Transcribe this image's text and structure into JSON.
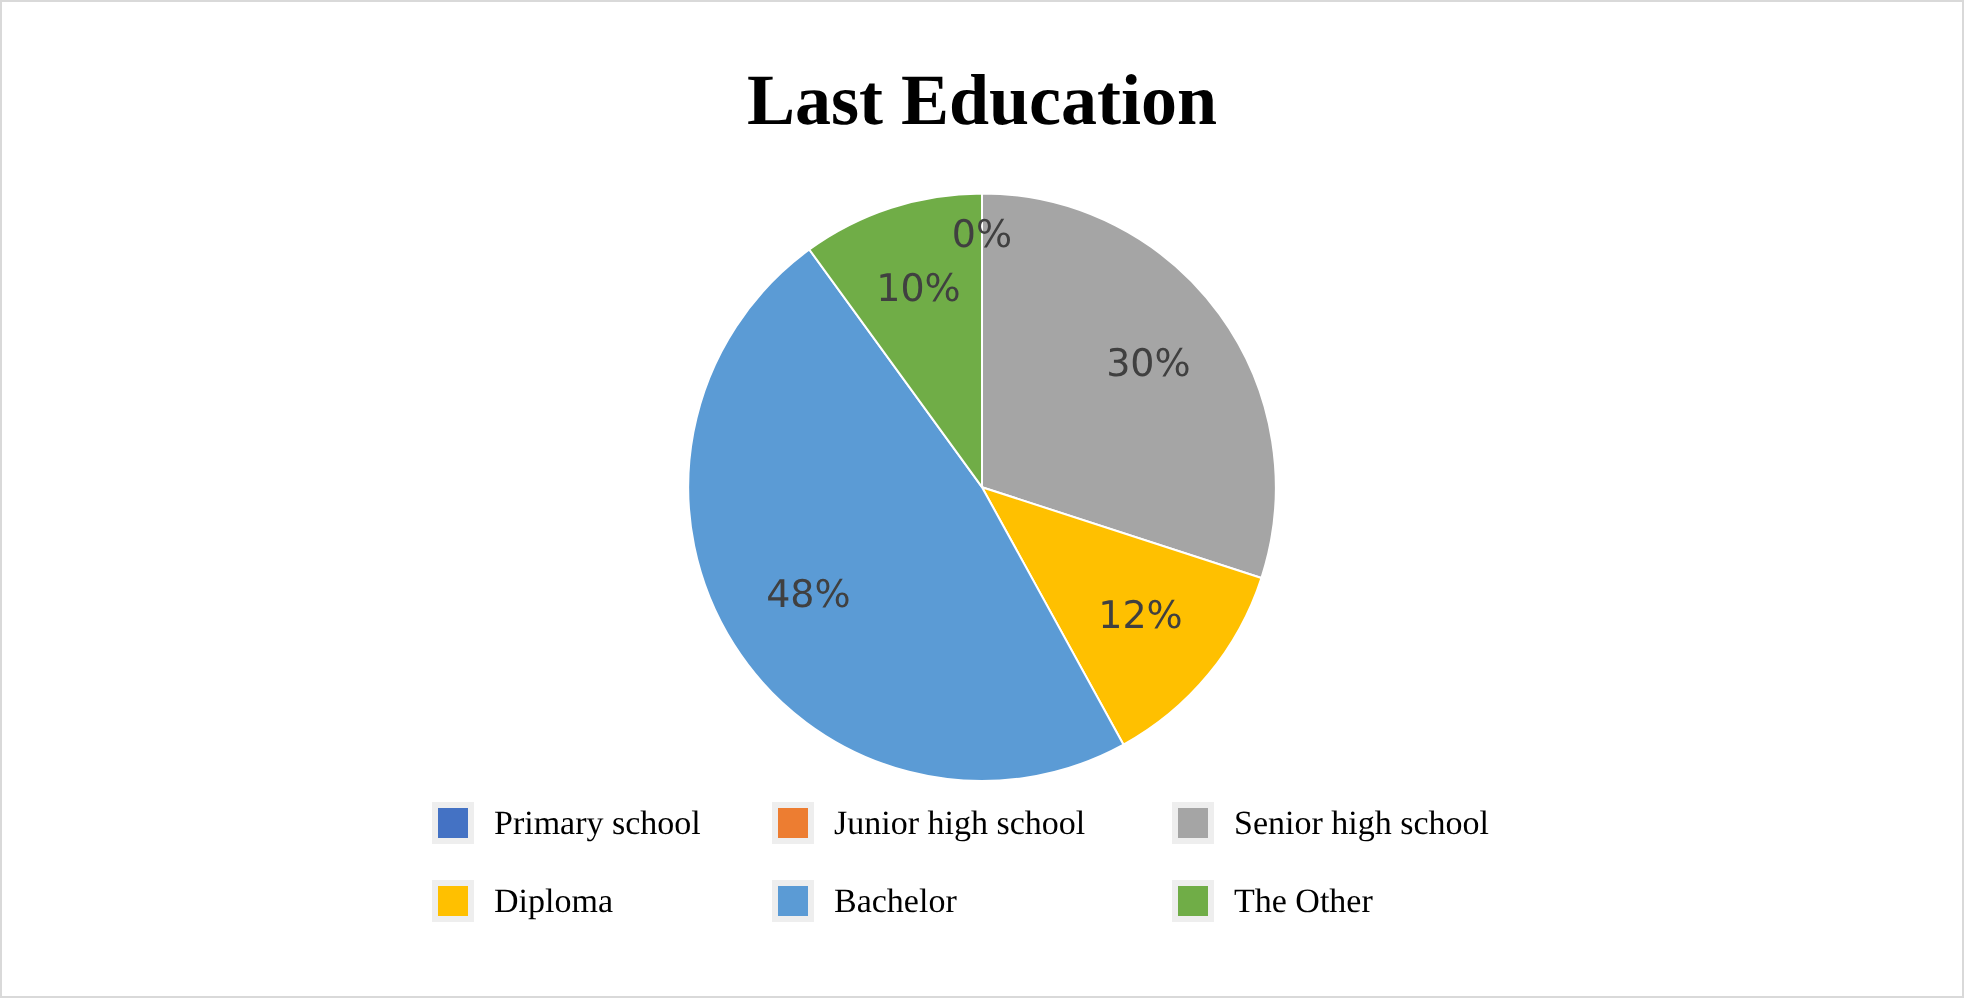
{
  "chart_data": {
    "type": "pie",
    "title": "Last Education",
    "categories": [
      "Primary school",
      "Junior high school",
      "Senior high school",
      "Diploma",
      "Bachelor",
      "The Other"
    ],
    "values": [
      0,
      0,
      30,
      12,
      48,
      10
    ],
    "colors": [
      "#4472c4",
      "#ed7d31",
      "#a5a5a5",
      "#ffc000",
      "#5b9bd5",
      "#70ad47"
    ],
    "value_labels": [
      null,
      "0%",
      "30%",
      "12%",
      "48%",
      "10%"
    ],
    "legend": "bottom"
  }
}
